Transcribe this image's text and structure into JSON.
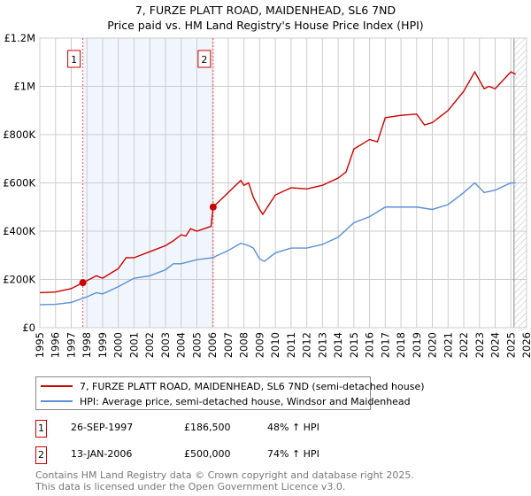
{
  "title": "7, FURZE PLATT ROAD, MAIDENHEAD, SL6 7ND",
  "subtitle": "Price paid vs. HM Land Registry's House Price Index (HPI)",
  "chart_data": {
    "type": "line",
    "title": "7, FURZE PLATT ROAD, MAIDENHEAD, SL6 7ND",
    "subtitle": "Price paid vs. HM Land Registry's House Price Index (HPI)",
    "xlim": [
      1995,
      2026
    ],
    "ylim": [
      0,
      1200000
    ],
    "x_ticks": [
      "1995",
      "1996",
      "1997",
      "1998",
      "1999",
      "2000",
      "2001",
      "2002",
      "2003",
      "2004",
      "2005",
      "2006",
      "2007",
      "2008",
      "2009",
      "2010",
      "2011",
      "2012",
      "2013",
      "2014",
      "2015",
      "2016",
      "2017",
      "2018",
      "2019",
      "2020",
      "2021",
      "2022",
      "2023",
      "2024",
      "2025",
      "2026"
    ],
    "y_ticks": [
      {
        "v": 0,
        "label": "£0"
      },
      {
        "v": 200000,
        "label": "£200K"
      },
      {
        "v": 400000,
        "label": "£400K"
      },
      {
        "v": 600000,
        "label": "£600K"
      },
      {
        "v": 800000,
        "label": "£800K"
      },
      {
        "v": 1000000,
        "label": "£1M"
      },
      {
        "v": 1200000,
        "label": "£1.2M"
      }
    ],
    "grid": true,
    "shaded_range": [
      1997.74,
      2006.04
    ],
    "forecast_hatch_from": 2025.2,
    "series": [
      {
        "name": "7, FURZE PLATT ROAD, MAIDENHEAD, SL6 7ND (semi-detached house)",
        "color": "#cc0000",
        "x": [
          1995,
          1996,
          1997,
          1997.74,
          1998,
          1998.6,
          1999,
          2000,
          2000.5,
          2001,
          2002,
          2003,
          2003.5,
          2004,
          2004.3,
          2004.6,
          2005,
          2005.9,
          2006.04,
          2007,
          2007.8,
          2008,
          2008.3,
          2008.6,
          2009,
          2009.2,
          2010,
          2011,
          2012,
          2013,
          2014,
          2014.5,
          2015,
          2016,
          2016.5,
          2017,
          2018,
          2019,
          2019.5,
          2020,
          2021,
          2022,
          2022.7,
          2023.3,
          2023.6,
          2024,
          2025,
          2025.3
        ],
        "y": [
          145000,
          148000,
          162000,
          186500,
          195000,
          215000,
          205000,
          245000,
          290000,
          290000,
          315000,
          340000,
          360000,
          385000,
          380000,
          410000,
          400000,
          420000,
          500000,
          560000,
          610000,
          590000,
          600000,
          540000,
          490000,
          470000,
          550000,
          580000,
          575000,
          590000,
          620000,
          645000,
          740000,
          780000,
          770000,
          870000,
          880000,
          885000,
          840000,
          850000,
          900000,
          980000,
          1060000,
          990000,
          1000000,
          990000,
          1060000,
          1050000
        ]
      },
      {
        "name": "HPI: Average price, semi-detached house, Windsor and Maidenhead",
        "color": "#5b8fd6",
        "x": [
          1995,
          1996,
          1997,
          1998,
          1998.6,
          1999,
          2000,
          2001,
          2002,
          2003,
          2003.5,
          2004,
          2005,
          2006,
          2007,
          2007.8,
          2008.3,
          2008.6,
          2009,
          2009.3,
          2010,
          2011,
          2012,
          2013,
          2014,
          2015,
          2016,
          2017,
          2018,
          2019,
          2020,
          2021,
          2022,
          2022.7,
          2023.3,
          2024,
          2025,
          2025.3
        ],
        "y": [
          95000,
          97000,
          105000,
          128000,
          145000,
          140000,
          170000,
          205000,
          215000,
          240000,
          265000,
          265000,
          282000,
          290000,
          320000,
          350000,
          340000,
          330000,
          285000,
          275000,
          310000,
          330000,
          330000,
          345000,
          375000,
          435000,
          460000,
          500000,
          500000,
          500000,
          490000,
          510000,
          560000,
          600000,
          560000,
          570000,
          600000,
          600000
        ]
      }
    ],
    "annotations": [
      {
        "label": "1",
        "x": 1997.74,
        "y": 186500
      },
      {
        "label": "2",
        "x": 2006.04,
        "y": 500000
      }
    ]
  },
  "legend": [
    {
      "label": "7, FURZE PLATT ROAD, MAIDENHEAD, SL6 7ND (semi-detached house)",
      "color": "#cc0000"
    },
    {
      "label": "HPI: Average price, semi-detached house, Windsor and Maidenhead",
      "color": "#5b8fd6"
    }
  ],
  "transactions": [
    {
      "num": "1",
      "date": "26-SEP-1997",
      "price": "£186,500",
      "hpi": "48% ↑ HPI"
    },
    {
      "num": "2",
      "date": "13-JAN-2006",
      "price": "£500,000",
      "hpi": "74% ↑ HPI"
    }
  ],
  "footer": {
    "line1": "Contains HM Land Registry data © Crown copyright and database right 2025.",
    "line2": "This data is licensed under the Open Government Licence v3.0."
  }
}
